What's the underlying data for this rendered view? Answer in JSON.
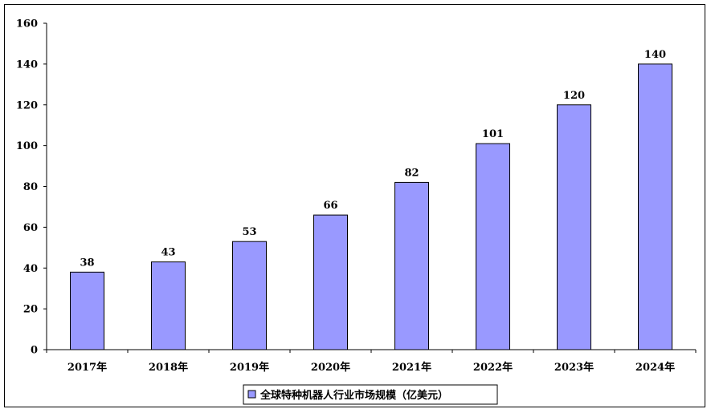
{
  "chart_data": {
    "type": "bar",
    "categories": [
      "2017年",
      "2018年",
      "2019年",
      "2020年",
      "2021年",
      "2022年",
      "2023年",
      "2024年"
    ],
    "series": [
      {
        "name": "全球特种机器人行业市场规模（亿美元）",
        "values": [
          38,
          43,
          53,
          66,
          82,
          101,
          120,
          140
        ]
      }
    ],
    "ylim": [
      0,
      160
    ],
    "yticks": [
      0,
      20,
      40,
      60,
      80,
      100,
      120,
      140,
      160
    ],
    "grid": false,
    "legend": "bottom-center",
    "colors": {
      "bar": "#9999ff",
      "bar_stroke": "#000000",
      "axis": "#000000"
    }
  }
}
